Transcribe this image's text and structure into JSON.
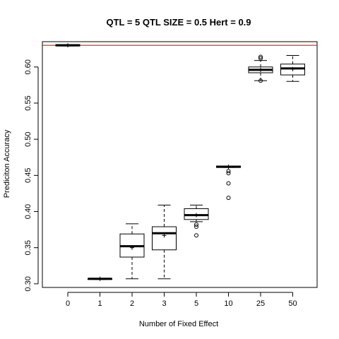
{
  "chart_data": {
    "type": "box",
    "title": "QTL = 5 QTL SIZE = 0.5 Hert = 0.9",
    "xlabel": "Number of Fixed Effect",
    "ylabel": "Prediciton Accuracy",
    "ylim": [
      0.295,
      0.635
    ],
    "yticks": [
      0.3,
      0.35,
      0.4,
      0.45,
      0.5,
      0.55,
      0.6
    ],
    "ytick_labels": [
      "0.30",
      "0.35",
      "0.40",
      "0.45",
      "0.50",
      "0.55",
      "0.60"
    ],
    "categories": [
      "0",
      "1",
      "2",
      "3",
      "5",
      "10",
      "25",
      "50"
    ],
    "reference_line": {
      "y": 0.63,
      "color": "#cc0000"
    },
    "boxes": [
      {
        "min": 0.629,
        "q1": 0.629,
        "median": 0.63,
        "q3": 0.631,
        "max": 0.631,
        "mean": 0.63,
        "outliers": []
      },
      {
        "min": 0.306,
        "q1": 0.306,
        "median": 0.307,
        "q3": 0.307,
        "max": 0.307,
        "mean": 0.307,
        "outliers": []
      },
      {
        "min": 0.307,
        "q1": 0.337,
        "median": 0.352,
        "q3": 0.369,
        "max": 0.383,
        "mean": 0.35,
        "outliers": []
      },
      {
        "min": 0.307,
        "q1": 0.347,
        "median": 0.37,
        "q3": 0.379,
        "max": 0.409,
        "mean": 0.367,
        "outliers": []
      },
      {
        "min": 0.386,
        "q1": 0.389,
        "median": 0.395,
        "q3": 0.404,
        "max": 0.409,
        "mean": 0.395,
        "outliers": [
          0.382,
          0.379,
          0.367
        ]
      },
      {
        "min": 0.461,
        "q1": 0.461,
        "median": 0.462,
        "q3": 0.463,
        "max": 0.463,
        "mean": 0.462,
        "outliers": [
          0.456,
          0.453,
          0.439,
          0.419
        ]
      },
      {
        "min": 0.581,
        "q1": 0.592,
        "median": 0.596,
        "q3": 0.6,
        "max": 0.609,
        "mean": 0.596,
        "outliers": [
          0.614,
          0.612,
          0.581
        ]
      },
      {
        "min": 0.58,
        "q1": 0.589,
        "median": 0.598,
        "q3": 0.604,
        "max": 0.616,
        "mean": 0.597,
        "outliers": []
      }
    ]
  }
}
